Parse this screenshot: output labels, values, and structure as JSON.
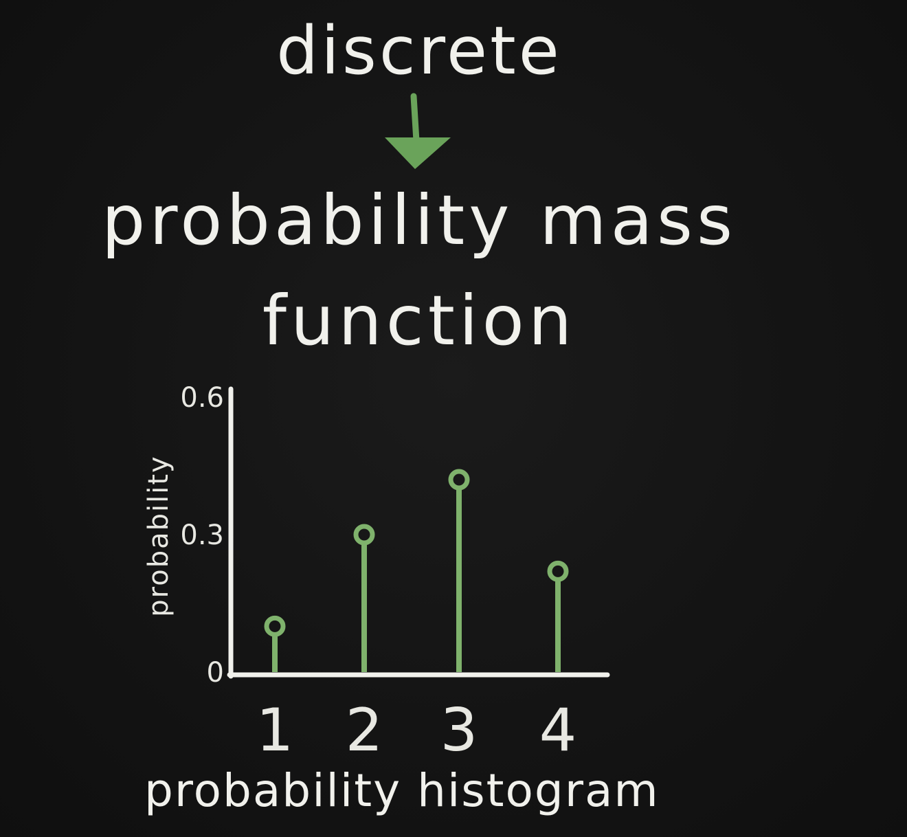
{
  "slide": {
    "heading_top": "discrete",
    "heading_bottom_line1": "probability mass",
    "heading_bottom_line2": "function",
    "caption": "probability histogram"
  },
  "colors": {
    "background": "#121212",
    "chalk": "#f1f1ec",
    "stem": "#7fb26c",
    "arrow": "#6aa35a"
  },
  "chart_data": {
    "type": "scatter",
    "style": "stem",
    "categories": [
      "1",
      "2",
      "3",
      "4"
    ],
    "x": [
      1,
      2,
      3,
      4
    ],
    "values": [
      0.1,
      0.3,
      0.42,
      0.22
    ],
    "ylabel": "probability",
    "yticks": [
      "0",
      "0.3",
      "0.6"
    ],
    "ylim": [
      0,
      0.6
    ],
    "grid": false
  }
}
